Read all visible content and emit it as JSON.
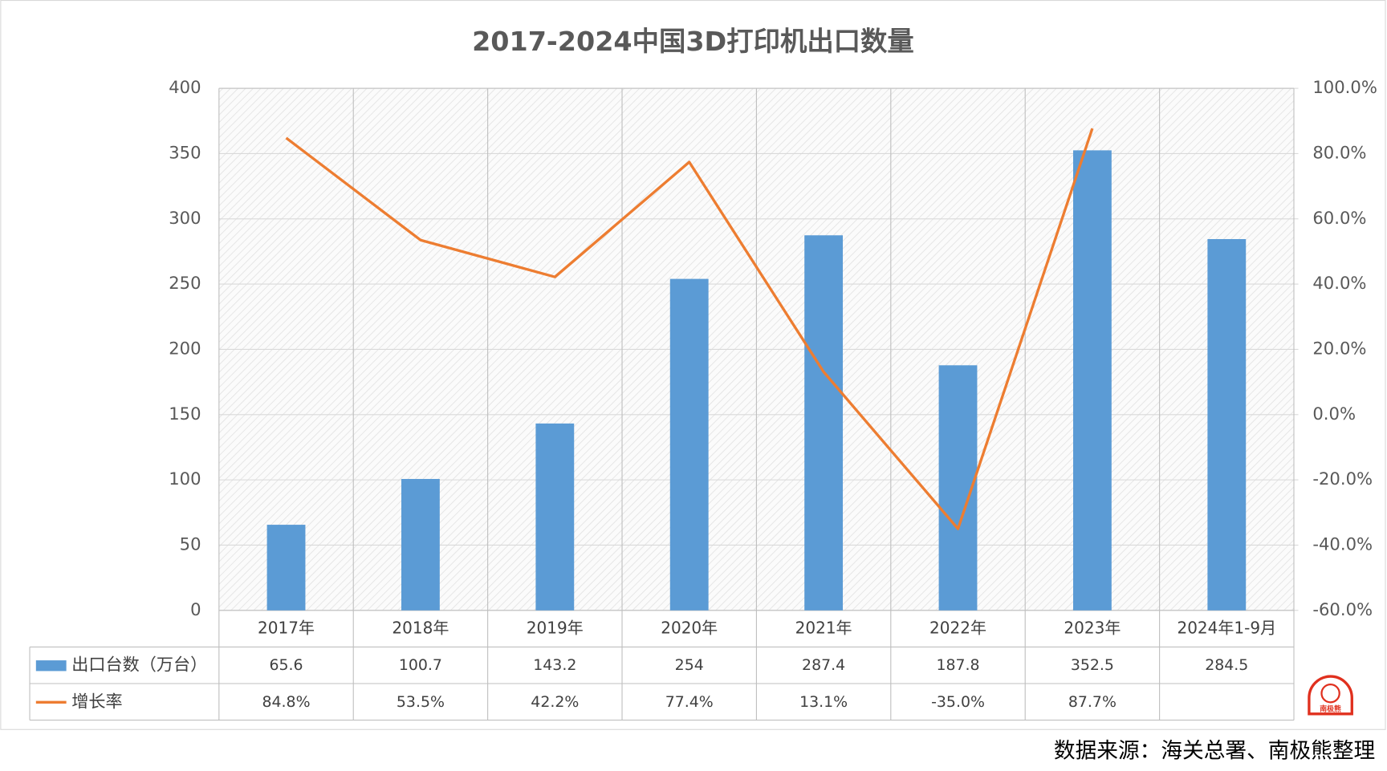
{
  "chart_data": {
    "type": "bar-line",
    "title": "2017-2024中国3D打印机出口数量",
    "categories": [
      "2017年",
      "2018年",
      "2019年",
      "2020年",
      "2021年",
      "2022年",
      "2023年",
      "2024年1-9月"
    ],
    "series": [
      {
        "name": "出口台数（万台）",
        "color": "#5b9bd5",
        "type": "bar",
        "values": [
          65.6,
          100.7,
          143.2,
          254,
          287.4,
          187.8,
          352.5,
          284.5
        ]
      },
      {
        "name": "增长率",
        "color": "#ed7d31",
        "type": "line",
        "axis": "y2",
        "values": [
          84.8,
          53.5,
          42.2,
          77.4,
          13.1,
          -35.0,
          87.7,
          null
        ],
        "value_labels": [
          "84.8%",
          "53.5%",
          "42.2%",
          "77.4%",
          "13.1%",
          "-35.0%",
          "87.7%",
          null
        ]
      }
    ],
    "ylim": [
      0,
      400
    ],
    "yticks": [
      0,
      50,
      100,
      150,
      200,
      250,
      300,
      350,
      400
    ],
    "y2lim": [
      -60,
      100
    ],
    "y2ticks": [
      {
        "value": -60,
        "label": "-60.0%"
      },
      {
        "value": -40,
        "label": "-40.0%"
      },
      {
        "value": -20,
        "label": "-20.0%"
      },
      {
        "value": 0,
        "label": "0.0%"
      },
      {
        "value": 20,
        "label": "20.0%"
      },
      {
        "value": 40,
        "label": "40.0%"
      },
      {
        "value": 60,
        "label": "60.0%"
      },
      {
        "value": 80,
        "label": "80.0%"
      },
      {
        "value": 100,
        "label": "100.0%"
      }
    ],
    "grid": true,
    "data_table": true,
    "logo": "南极熊",
    "source": "数据来源：海关总署、南极熊整理"
  }
}
